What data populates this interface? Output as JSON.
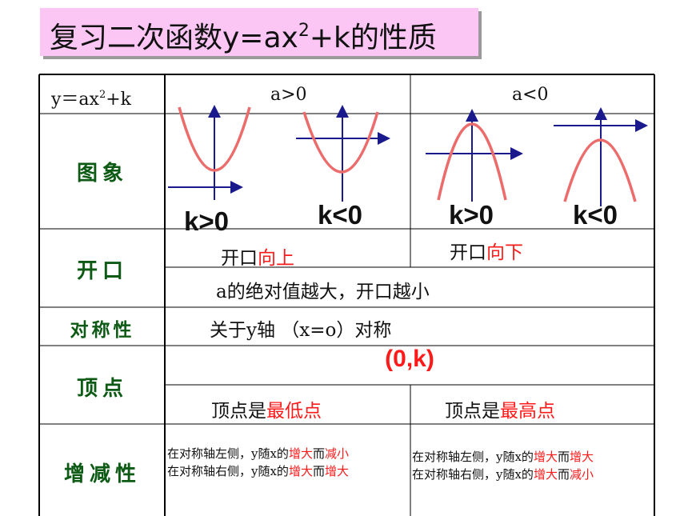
{
  "title": {
    "pre": "复习二次函数y=ax",
    "exp": "2",
    "post": "+k的性质"
  },
  "header": {
    "col1_pre": "y＝ax",
    "col1_exp": "2",
    "col1_post": "+k",
    "col2": "a>0",
    "col3": "a<0"
  },
  "rows": {
    "graph": "图象",
    "opening": "开口",
    "symmetry": "对称性",
    "vertex": "顶点",
    "monotonic": "增减性"
  },
  "graph_labels": [
    "k>0",
    "k<0",
    "k>0",
    "k<0"
  ],
  "opening": {
    "pos_prefix": "开口",
    "pos_red": "向上",
    "neg_prefix": "开口",
    "neg_red": "向下",
    "shared": "a的绝对值越大，开口越小"
  },
  "symmetry_text": "关于y轴  （x=o）对称",
  "vertex_coord": "(0,k)",
  "vertex_pos": {
    "prefix": "顶点是",
    "red": "最低点"
  },
  "vertex_neg": {
    "prefix": "顶点是",
    "red": "最高点"
  },
  "mono_pos": {
    "line1_a": "在对称轴左侧，y随x的",
    "line1_r1": "增大",
    "line1_b": "而",
    "line1_r2": "减小",
    "line2_a": "在对称轴右侧，y随x的",
    "line2_r1": "增大",
    "line2_b": "而",
    "line2_r2": "增大"
  },
  "mono_neg": {
    "line1_a": "在对称轴左侧，y随x的",
    "line1_r1": "增大",
    "line1_b": "而",
    "line1_r2": "增大",
    "line2_a": "在对称轴右侧，y随x的",
    "line2_r1": "增大",
    "line2_b": "而",
    "line2_r2": "减小"
  },
  "colors": {
    "curve": "#ec6b6b",
    "axis": "#1a1a8c",
    "red_text": "#ff1a1a",
    "label_green": "#0d5a14",
    "title_bg": "#fbc6f4"
  }
}
